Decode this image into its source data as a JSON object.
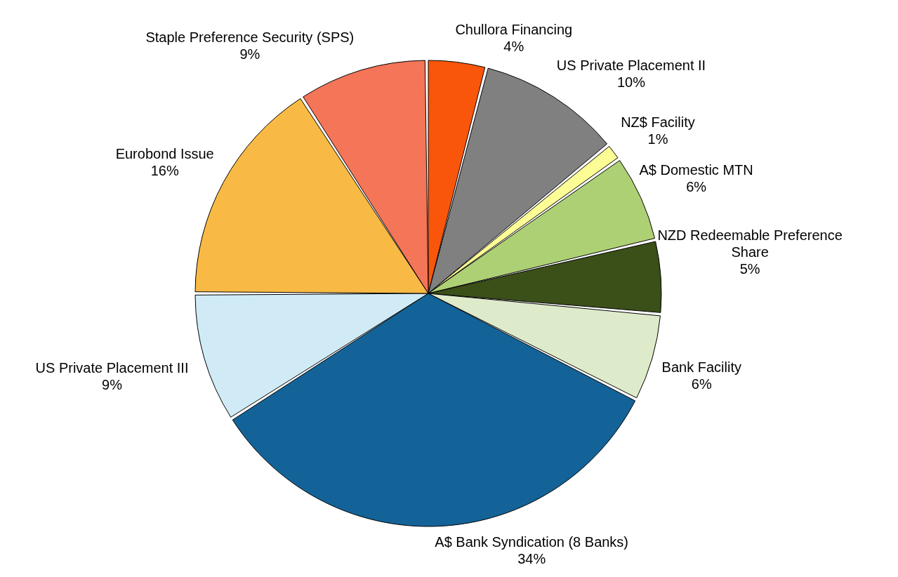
{
  "chart_data": {
    "type": "pie",
    "categories": [
      "Chullora Financing",
      "US Private Placement II",
      "NZ$ Facility",
      "A$ Domestic MTN",
      "NZD Redeemable Preference Share",
      "Bank Facility",
      "A$ Bank Syndication (8 Banks)",
      "US Private Placement III",
      "Eurobond Issue",
      "Staple Preference Security (SPS)"
    ],
    "values": [
      4,
      10,
      1,
      6,
      5,
      6,
      34,
      9,
      16,
      9
    ],
    "value_labels": [
      "4%",
      "10%",
      "1%",
      "6%",
      "5%",
      "6%",
      "34%",
      "9%",
      "16%",
      "9%"
    ],
    "colors": [
      "#f9560b",
      "#808080",
      "#fdfd96",
      "#aed074",
      "#3b4f19",
      "#deebcb",
      "#136398",
      "#d0ebf6",
      "#f9ba45",
      "#f47558"
    ],
    "legend": false
  }
}
